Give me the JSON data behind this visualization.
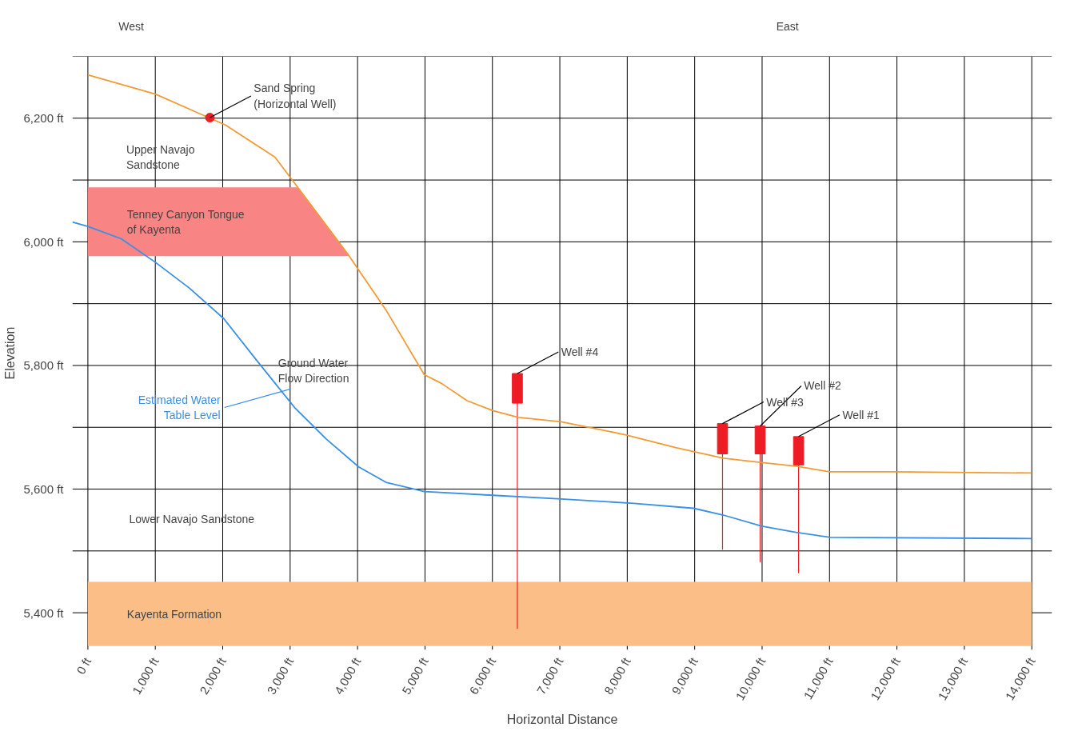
{
  "chart_data": {
    "type": "line",
    "xlabel": "Horizontal Distance",
    "ylabel": "Elevation",
    "xlim": [
      -230,
      14300
    ],
    "ylim": [
      5340,
      6300
    ],
    "grid": true,
    "xticks": [
      {
        "value": 0,
        "label": "0 ft"
      },
      {
        "value": 1000,
        "label": "1,000 ft"
      },
      {
        "value": 2000,
        "label": "2,000 ft"
      },
      {
        "value": 3000,
        "label": "3,000 ft"
      },
      {
        "value": 4000,
        "label": "4,000 ft"
      },
      {
        "value": 5000,
        "label": "5,000 ft"
      },
      {
        "value": 6000,
        "label": "6,000 ft"
      },
      {
        "value": 7000,
        "label": "7,000 ft"
      },
      {
        "value": 8000,
        "label": "8,000 ft"
      },
      {
        "value": 9000,
        "label": "9,000 ft"
      },
      {
        "value": 10000,
        "label": "10,000 ft"
      },
      {
        "value": 11000,
        "label": "11,000 ft"
      },
      {
        "value": 12000,
        "label": "12,000 ft"
      },
      {
        "value": 13000,
        "label": "13,000 ft"
      },
      {
        "value": 14000,
        "label": "14,000 ft"
      }
    ],
    "yticks": [
      {
        "value": 5400,
        "label": "5,400 ft"
      },
      {
        "value": 5500,
        "label": null
      },
      {
        "value": 5600,
        "label": "5,600 ft"
      },
      {
        "value": 5700,
        "label": null
      },
      {
        "value": 5800,
        "label": "5,800 ft"
      },
      {
        "value": 5900,
        "label": null
      },
      {
        "value": 6000,
        "label": "6,000 ft"
      },
      {
        "value": 6100,
        "label": null
      },
      {
        "value": 6200,
        "label": "6,200 ft"
      },
      {
        "value": 6300,
        "label": null
      }
    ],
    "bands": [
      {
        "axis": "y",
        "from": 5346,
        "to": 5450,
        "label": "Kayenta Formation",
        "color": "#fbbe86"
      },
      {
        "axis": "y",
        "from": 5977,
        "to": 6088,
        "label": "Tenney Canyon Tongue\nof Kayenta",
        "color": "#f88484"
      }
    ],
    "series": [
      {
        "color": "#f39a35",
        "x": [
          0,
          1000,
          2040,
          2775,
          3066,
          3850,
          4420,
          4990,
          5245,
          5625,
          6005,
          6385,
          7020,
          7970,
          8730,
          9425,
          9995,
          10505,
          10945,
          11010,
          11900,
          14000
        ],
        "values": [
          6270,
          6239,
          6189,
          6137,
          6095,
          5981,
          5890,
          5785,
          5771,
          5743,
          5727,
          5716,
          5709,
          5688,
          5667,
          5650,
          5643,
          5637,
          5629,
          5628,
          5628,
          5626
        ]
      },
      {
        "name": "Estimated Water\nTable Level",
        "color": "#3a8fe6",
        "x": [
          -230,
          0,
          494,
          1000,
          1508,
          2014,
          2521,
          3066,
          3535,
          4016,
          4422,
          4992,
          6005,
          7019,
          8096,
          8983,
          9425,
          9996,
          10503,
          11010,
          14000
        ],
        "values": [
          6032,
          6025,
          6005,
          5967,
          5925,
          5876,
          5806,
          5732,
          5681,
          5636,
          5611,
          5596,
          5590,
          5584,
          5577,
          5569,
          5558,
          5540,
          5530,
          5522,
          5520
        ]
      },
      {
        "type": "bar",
        "color": "#ee1c24",
        "x": [
          6370,
          9413,
          9971,
          10541
        ],
        "base": [
          5739,
          5657,
          5657,
          5639
        ],
        "values": [
          48,
          49,
          45,
          46
        ],
        "errors": [
          [
            5374,
            5787
          ],
          [
            5502,
            5706
          ],
          [
            5482,
            5702
          ],
          [
            5464,
            5685
          ]
        ]
      },
      {
        "type": "scatter",
        "marker": "circle",
        "color": "#ee1c24",
        "x": [
          1810
        ],
        "values": [
          6201
        ]
      }
    ],
    "annotations": [
      "West",
      "East",
      "Upper Navajo\nSandstone",
      "Ground Water\nFlow Direction",
      "Lower Navajo Sandstone",
      {
        "text": "Sand Spring\n(Horizontal Well)",
        "x": 1810,
        "y": 6201
      },
      {
        "text": "Well #4",
        "x": 6370,
        "y": 5787
      },
      {
        "text": "Well #3",
        "x": 9413,
        "y": 5706
      },
      {
        "text": "Well #2",
        "x": 9971,
        "y": 5702
      },
      {
        "text": "Well #1",
        "x": 10541,
        "y": 5685
      }
    ]
  }
}
